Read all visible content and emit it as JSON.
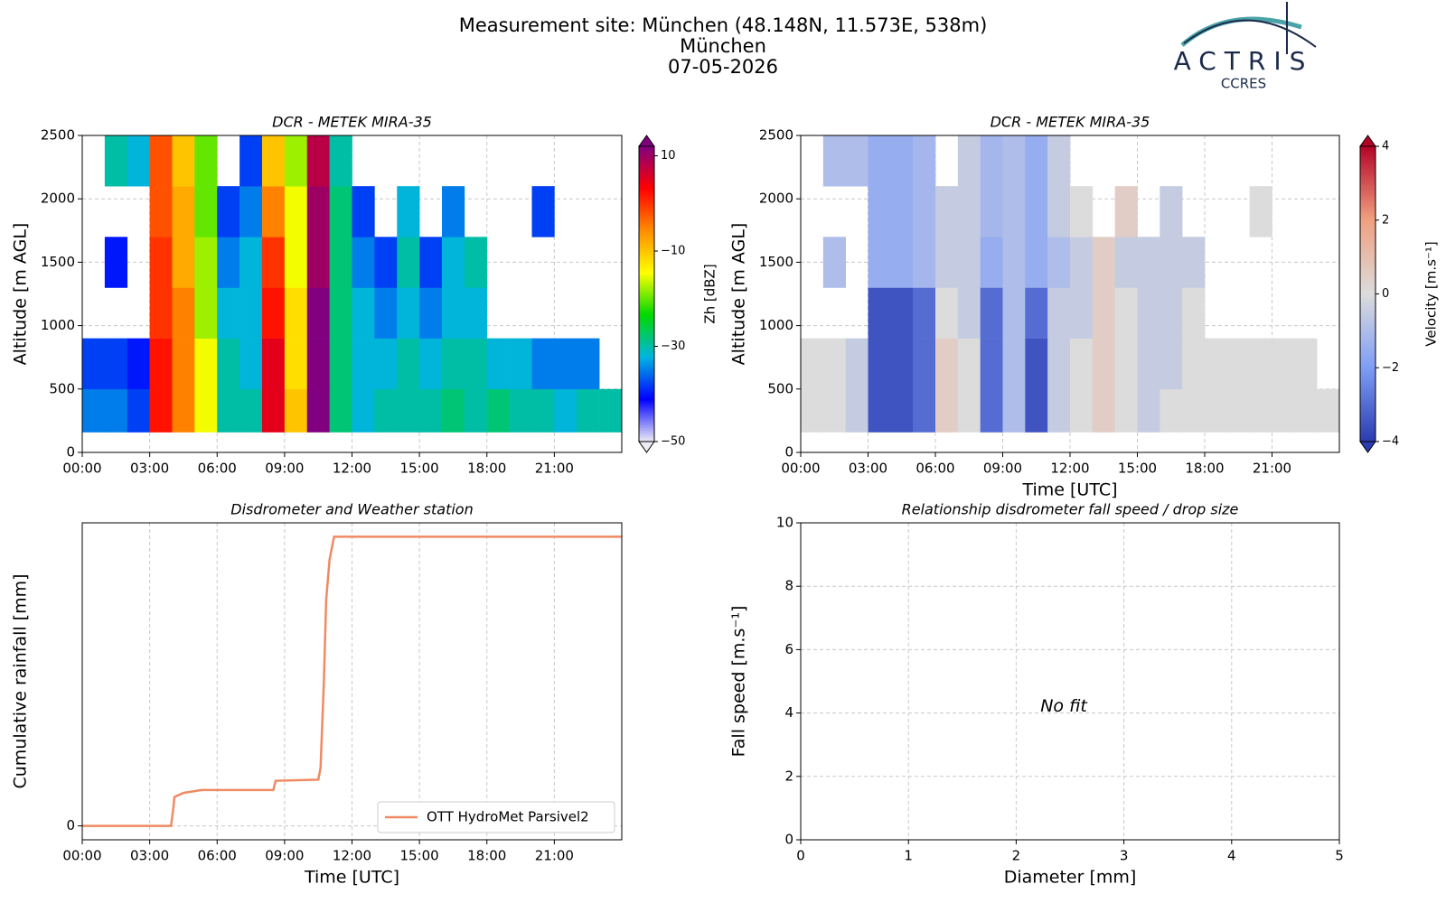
{
  "header": {
    "title": "Measurement site: München (48.148N, 11.573E, 538m)",
    "site": "München",
    "date": "07-05-2026"
  },
  "logo": {
    "name": "ACTRIS",
    "sub": "CCRES"
  },
  "chart_data": [
    {
      "type": "heatmap",
      "title": "DCR - METEK MIRA-35",
      "y_label": "Altitude [m AGL]",
      "colorbar_label": "Zh [dBZ]",
      "xlim": [
        0,
        24
      ],
      "ylim": [
        0,
        2500
      ],
      "xticks": [
        {
          "value": 0,
          "label": "00:00"
        },
        {
          "value": 3,
          "label": "03:00"
        },
        {
          "value": 6,
          "label": "06:00"
        },
        {
          "value": 9,
          "label": "09:00"
        },
        {
          "value": 12,
          "label": "12:00"
        },
        {
          "value": 15,
          "label": "15:00"
        },
        {
          "value": 18,
          "label": "18:00"
        },
        {
          "value": 21,
          "label": "21:00"
        }
      ],
      "yticks": [
        0,
        500,
        1000,
        1500,
        2000,
        2500
      ],
      "grid": true,
      "x_bins": [
        0,
        1,
        2,
        3,
        4,
        5,
        6,
        7,
        8,
        9,
        10,
        11,
        12,
        13,
        14,
        15,
        16,
        17,
        18,
        19,
        20,
        21,
        22,
        23,
        24
      ],
      "y_bins": [
        160,
        500,
        900,
        1300,
        1700,
        2100,
        2500
      ],
      "z": [
        [
          -35,
          -35,
          -38,
          2,
          -5,
          -15,
          -30,
          -30,
          5,
          -10,
          12,
          -28,
          -32,
          -30,
          -30,
          -30,
          -28,
          -30,
          -28,
          -30,
          -30,
          -32,
          -30,
          -30
        ],
        [
          -38,
          -38,
          -40,
          2,
          -5,
          -15,
          -30,
          -32,
          5,
          -12,
          12,
          -28,
          -32,
          -32,
          -30,
          -32,
          -30,
          -30,
          -32,
          -32,
          -35,
          -35,
          -35,
          null
        ],
        [
          null,
          null,
          null,
          0,
          -5,
          -18,
          -32,
          -32,
          2,
          -12,
          12,
          -28,
          -32,
          -35,
          -32,
          -35,
          -32,
          -32,
          null,
          null,
          null,
          null,
          null,
          null
        ],
        [
          null,
          -40,
          null,
          0,
          -8,
          -18,
          -35,
          -32,
          0,
          -15,
          10,
          -28,
          -35,
          -38,
          -30,
          -38,
          -32,
          -30,
          null,
          null,
          null,
          null,
          null,
          null
        ],
        [
          null,
          null,
          null,
          -2,
          -8,
          -20,
          -38,
          -35,
          -5,
          -15,
          10,
          -28,
          -38,
          null,
          -32,
          null,
          -35,
          null,
          null,
          null,
          -38,
          null,
          null,
          null
        ],
        [
          null,
          -30,
          -32,
          -2,
          -10,
          -20,
          null,
          -38,
          -10,
          -18,
          8,
          -30,
          null,
          null,
          null,
          null,
          null,
          null,
          null,
          null,
          null,
          null,
          null,
          null
        ]
      ],
      "clim": [
        -50,
        12
      ],
      "cticks": [
        {
          "value": -50,
          "label": "−50"
        },
        {
          "value": -30,
          "label": "−30"
        },
        {
          "value": -10,
          "label": "−10"
        },
        10
      ],
      "colorscale": [
        "#ececf4",
        "#0000ff",
        "#00b4e0",
        "#00d800",
        "#ffff00",
        "#ff8c00",
        "#ff0000",
        "#800080"
      ]
    },
    {
      "type": "heatmap",
      "title": "DCR - METEK MIRA-35",
      "x_label": "Time [UTC]",
      "y_label": "Altitude [m AGL]",
      "colorbar_label": "Velocity [m.s⁻¹]",
      "xlim": [
        0,
        24
      ],
      "ylim": [
        0,
        2500
      ],
      "xticks": [
        {
          "value": 0,
          "label": "00:00"
        },
        {
          "value": 3,
          "label": "03:00"
        },
        {
          "value": 6,
          "label": "06:00"
        },
        {
          "value": 9,
          "label": "09:00"
        },
        {
          "value": 12,
          "label": "12:00"
        },
        {
          "value": 15,
          "label": "15:00"
        },
        {
          "value": 18,
          "label": "18:00"
        },
        {
          "value": 21,
          "label": "21:00"
        }
      ],
      "yticks": [
        0,
        500,
        1000,
        1500,
        2000,
        2500
      ],
      "grid": true,
      "x_bins": [
        0,
        1,
        2,
        3,
        4,
        5,
        6,
        7,
        8,
        9,
        10,
        11,
        12,
        13,
        14,
        15,
        16,
        17,
        18,
        19,
        20,
        21,
        22,
        23,
        24
      ],
      "y_bins": [
        160,
        500,
        900,
        1300,
        1700,
        2100,
        2500
      ],
      "z": [
        [
          0,
          0,
          -0.5,
          -3.5,
          -3.5,
          -3,
          0.5,
          0,
          -3,
          -1,
          -3.5,
          -0.5,
          0,
          0.5,
          0,
          -0.5,
          0,
          0,
          0,
          0,
          0,
          0,
          0,
          0
        ],
        [
          0,
          0,
          -0.5,
          -3.5,
          -3.5,
          -3,
          0.5,
          0,
          -3,
          -1,
          -3.5,
          -0.5,
          0,
          0.5,
          0,
          -0.5,
          -0.5,
          0,
          0,
          0,
          0,
          0,
          0,
          null
        ],
        [
          null,
          null,
          null,
          -3.5,
          -3.5,
          -3,
          0,
          -0.5,
          -3,
          -1,
          -3,
          -0.5,
          -0.5,
          0.5,
          0,
          -0.5,
          -0.5,
          0,
          null,
          null,
          null,
          null,
          null,
          null
        ],
        [
          null,
          -1,
          null,
          -1.5,
          -1.5,
          -1.2,
          -0.5,
          -0.5,
          -1.5,
          -1,
          -1.5,
          -1,
          -0.5,
          0.5,
          -0.5,
          -0.5,
          -0.5,
          -0.5,
          null,
          null,
          null,
          null,
          null,
          null
        ],
        [
          null,
          null,
          null,
          -1.5,
          -1.5,
          -1.2,
          -0.5,
          -0.5,
          -1.2,
          -1,
          -1.5,
          -0.5,
          0,
          null,
          0.5,
          null,
          -0.5,
          null,
          null,
          null,
          0,
          null,
          null,
          null
        ],
        [
          null,
          -1,
          -1,
          -1.5,
          -1.5,
          -1.2,
          null,
          -0.5,
          -1.2,
          -1,
          -1.5,
          -0.5,
          null,
          null,
          null,
          null,
          null,
          null,
          null,
          null,
          null,
          null,
          null,
          null
        ]
      ],
      "clim": [
        -4,
        4
      ],
      "cticks": [
        {
          "value": -4,
          "label": "−4"
        },
        {
          "value": -2,
          "label": "−2"
        },
        0,
        2,
        4
      ],
      "colorscale": [
        "#2a3cb0",
        "#7f9df5",
        "#dcdcdc",
        "#f0a080",
        "#b40426"
      ]
    },
    {
      "type": "line",
      "title": "Disdrometer and Weather station",
      "x_label": "Time [UTC]",
      "y_label": "Cumulative rainfall [mm]",
      "xlim": [
        0,
        24
      ],
      "ylim": [
        -0.24,
        5.24
      ],
      "xticks": [
        {
          "value": 0,
          "label": "00:00"
        },
        {
          "value": 3,
          "label": "03:00"
        },
        {
          "value": 6,
          "label": "06:00"
        },
        {
          "value": 9,
          "label": "09:00"
        },
        {
          "value": 12,
          "label": "12:00"
        },
        {
          "value": 15,
          "label": "15:00"
        },
        {
          "value": 18,
          "label": "18:00"
        },
        {
          "value": 21,
          "label": "21:00"
        }
      ],
      "yticks": [
        0
      ],
      "grid": true,
      "legend": "lower right",
      "x": [
        0,
        3.95,
        4.05,
        4.1,
        4.5,
        5.3,
        8.5,
        8.6,
        10.5,
        10.6,
        10.75,
        10.85,
        11.0,
        11.2,
        24
      ],
      "series": [
        {
          "name": "OTT HydroMet Parsivel2",
          "color": "#ef8a62",
          "values": [
            0,
            0,
            0.3,
            0.5,
            0.57,
            0.62,
            0.62,
            0.78,
            0.8,
            1.0,
            2.5,
            3.9,
            4.6,
            5,
            5
          ]
        }
      ]
    },
    {
      "type": "scatter",
      "title": "Relationship disdrometer fall speed / drop size",
      "x_label": "Diameter [mm]",
      "y_label": "Fall speed [m.s⁻¹]",
      "xlim": [
        0,
        5
      ],
      "ylim": [
        0,
        10
      ],
      "xticks": [
        0,
        1,
        2,
        3,
        4,
        5
      ],
      "yticks": [
        0,
        2,
        4,
        6,
        8,
        10
      ],
      "grid": true,
      "annotation": "No fit"
    }
  ]
}
